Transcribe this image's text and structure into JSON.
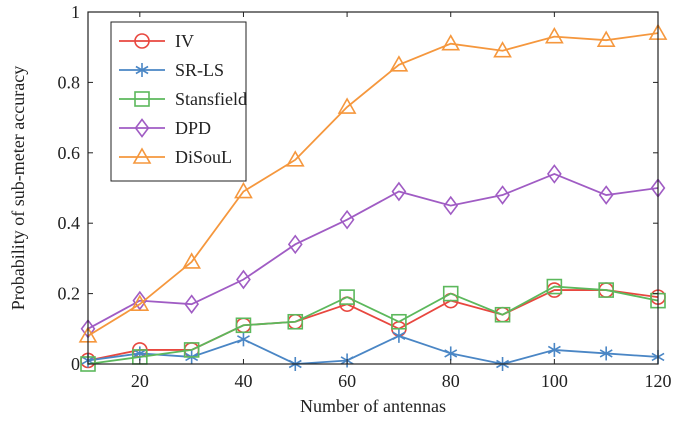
{
  "chart_data": {
    "type": "line",
    "title": "",
    "xlabel": "Number of antennas",
    "ylabel": "Probability of sub-meter accuracy",
    "xlim": [
      10,
      120
    ],
    "ylim": [
      0,
      1
    ],
    "x_ticks": [
      20,
      40,
      60,
      80,
      100,
      120
    ],
    "y_ticks": [
      0,
      0.2,
      0.4,
      0.6,
      0.8,
      1
    ],
    "y_tick_labels": [
      "0",
      "0.2",
      "0.4",
      "0.6",
      "0.8",
      "1"
    ],
    "grid": false,
    "legend_position": "top-left",
    "x": [
      10,
      20,
      30,
      40,
      50,
      60,
      70,
      80,
      90,
      100,
      110,
      120
    ],
    "series": [
      {
        "name": "IV",
        "color": "#e8473f",
        "marker": "circle",
        "values": [
          0.01,
          0.04,
          0.04,
          0.11,
          0.12,
          0.17,
          0.1,
          0.18,
          0.14,
          0.21,
          0.21,
          0.19
        ]
      },
      {
        "name": "SR-LS",
        "color": "#4a86c5",
        "marker": "asterisk",
        "values": [
          0.01,
          0.03,
          0.02,
          0.07,
          0.0,
          0.01,
          0.08,
          0.03,
          0.0,
          0.04,
          0.03,
          0.02
        ]
      },
      {
        "name": "Stansfield",
        "color": "#5cb85c",
        "marker": "square",
        "values": [
          0.0,
          0.02,
          0.04,
          0.11,
          0.12,
          0.19,
          0.12,
          0.2,
          0.14,
          0.22,
          0.21,
          0.18
        ]
      },
      {
        "name": "DPD",
        "color": "#a05cc4",
        "marker": "diamond",
        "values": [
          0.1,
          0.18,
          0.17,
          0.24,
          0.34,
          0.41,
          0.49,
          0.45,
          0.48,
          0.54,
          0.48,
          0.5
        ]
      },
      {
        "name": "DiSouL",
        "color": "#f5973d",
        "marker": "triangle",
        "values": [
          0.08,
          0.17,
          0.29,
          0.49,
          0.58,
          0.73,
          0.85,
          0.91,
          0.89,
          0.93,
          0.92,
          0.94
        ]
      }
    ]
  }
}
